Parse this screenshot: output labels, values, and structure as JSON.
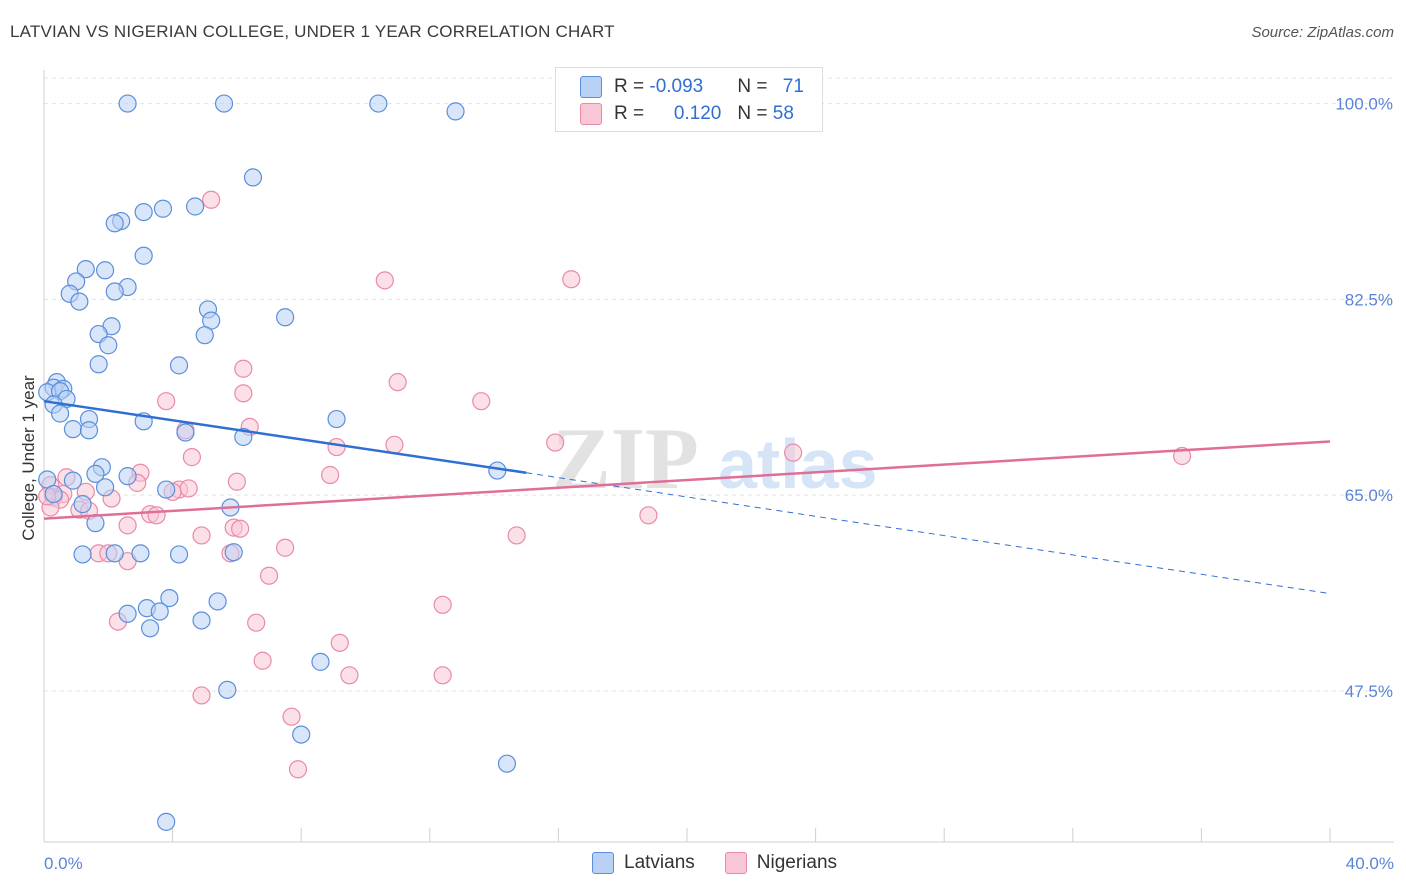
{
  "title": "LATVIAN VS NIGERIAN COLLEGE, UNDER 1 YEAR CORRELATION CHART",
  "source": "Source: ZipAtlas.com",
  "watermark": "ZIPatlas",
  "legend": {
    "rows": [
      {
        "r_label": "R = ",
        "r_value": "-0.093",
        "n_label": "N = ",
        "n_value": "71"
      },
      {
        "r_label": "R = ",
        "r_value": "0.120",
        "n_label": "N = ",
        "n_value": "58"
      }
    ]
  },
  "colors": {
    "latvians_fill": "#b9d1f4",
    "latvians_stroke": "#5b8fdc",
    "latvians_line": "#2f6fd1",
    "nigerians_fill": "#f9c6d6",
    "nigerians_stroke": "#e98aa8",
    "nigerians_line": "#e06e96",
    "axis_label": "#5b84d6",
    "grid": "#e3e3e3"
  },
  "chart_data": {
    "type": "scatter",
    "title": "LATVIAN VS NIGERIAN COLLEGE, UNDER 1 YEAR CORRELATION CHART",
    "xlabel": "",
    "ylabel": "College, Under 1 year",
    "xlim": [
      0,
      40
    ],
    "ylim": [
      34,
      103
    ],
    "x_tick_labels": [
      "0.0%",
      "40.0%"
    ],
    "y_ticks": [
      47.5,
      65.0,
      82.5,
      100.0
    ],
    "y_tick_labels": [
      "47.5%",
      "65.0%",
      "82.5%",
      "100.0%"
    ],
    "grid": true,
    "legend_position": "bottom",
    "series": [
      {
        "name": "Latvians",
        "trend": {
          "x0": 0,
          "y0": 73.4,
          "x1": 15,
          "y1": 67.0,
          "dashed_to_x": 40,
          "dashed_to_y": 56.2
        },
        "points": [
          [
            2.6,
            100.0
          ],
          [
            5.6,
            100.0
          ],
          [
            10.4,
            100.0
          ],
          [
            12.8,
            99.3
          ],
          [
            6.5,
            93.4
          ],
          [
            4.7,
            90.8
          ],
          [
            3.7,
            90.6
          ],
          [
            3.1,
            90.3
          ],
          [
            2.4,
            89.5
          ],
          [
            2.2,
            89.3
          ],
          [
            3.1,
            86.4
          ],
          [
            1.3,
            85.2
          ],
          [
            1.9,
            85.1
          ],
          [
            1.0,
            84.1
          ],
          [
            2.6,
            83.6
          ],
          [
            2.2,
            83.2
          ],
          [
            0.8,
            83.0
          ],
          [
            1.1,
            82.3
          ],
          [
            5.1,
            81.6
          ],
          [
            5.2,
            80.6
          ],
          [
            7.5,
            80.9
          ],
          [
            2.1,
            80.1
          ],
          [
            1.7,
            79.4
          ],
          [
            5.0,
            79.3
          ],
          [
            2.0,
            78.4
          ],
          [
            1.7,
            76.7
          ],
          [
            4.2,
            76.6
          ],
          [
            0.4,
            75.1
          ],
          [
            0.3,
            74.6
          ],
          [
            0.6,
            74.5
          ],
          [
            0.1,
            74.2
          ],
          [
            0.5,
            74.3
          ],
          [
            0.7,
            73.6
          ],
          [
            0.3,
            73.1
          ],
          [
            0.5,
            72.3
          ],
          [
            1.4,
            71.8
          ],
          [
            3.1,
            71.6
          ],
          [
            9.1,
            71.8
          ],
          [
            0.9,
            70.9
          ],
          [
            1.4,
            70.8
          ],
          [
            4.4,
            70.6
          ],
          [
            6.2,
            70.2
          ],
          [
            14.1,
            67.2
          ],
          [
            1.8,
            67.5
          ],
          [
            1.6,
            66.9
          ],
          [
            2.6,
            66.7
          ],
          [
            0.9,
            66.3
          ],
          [
            1.9,
            65.7
          ],
          [
            3.8,
            65.5
          ],
          [
            1.2,
            64.2
          ],
          [
            5.8,
            63.9
          ],
          [
            1.6,
            62.5
          ],
          [
            1.2,
            59.7
          ],
          [
            2.2,
            59.8
          ],
          [
            3.0,
            59.8
          ],
          [
            4.2,
            59.7
          ],
          [
            5.9,
            59.9
          ],
          [
            3.9,
            55.8
          ],
          [
            5.4,
            55.5
          ],
          [
            3.2,
            54.9
          ],
          [
            3.6,
            54.6
          ],
          [
            2.6,
            54.4
          ],
          [
            4.9,
            53.8
          ],
          [
            3.3,
            53.1
          ],
          [
            8.6,
            50.1
          ],
          [
            5.7,
            47.6
          ],
          [
            8.0,
            43.6
          ],
          [
            14.4,
            41.0
          ],
          [
            3.8,
            35.8
          ],
          [
            0.1,
            66.4
          ],
          [
            0.3,
            65.1
          ]
        ]
      },
      {
        "name": "Nigerians",
        "trend": {
          "x0": 0,
          "y0": 62.9,
          "x1": 40,
          "y1": 69.8
        },
        "points": [
          [
            5.2,
            91.4
          ],
          [
            10.6,
            84.2
          ],
          [
            16.4,
            84.3
          ],
          [
            6.2,
            76.3
          ],
          [
            11.0,
            75.1
          ],
          [
            6.2,
            74.1
          ],
          [
            3.8,
            73.4
          ],
          [
            13.6,
            73.4
          ],
          [
            6.4,
            71.1
          ],
          [
            4.4,
            70.8
          ],
          [
            15.9,
            69.7
          ],
          [
            9.1,
            69.3
          ],
          [
            10.9,
            69.5
          ],
          [
            23.3,
            68.8
          ],
          [
            35.4,
            68.5
          ],
          [
            4.6,
            68.4
          ],
          [
            3.0,
            67.0
          ],
          [
            0.7,
            66.6
          ],
          [
            8.9,
            66.8
          ],
          [
            6.0,
            66.2
          ],
          [
            2.9,
            66.1
          ],
          [
            0.2,
            65.9
          ],
          [
            4.2,
            65.5
          ],
          [
            4.5,
            65.6
          ],
          [
            4.0,
            65.3
          ],
          [
            1.3,
            65.3
          ],
          [
            0.6,
            65.1
          ],
          [
            0.3,
            64.8
          ],
          [
            0.5,
            64.6
          ],
          [
            2.1,
            64.7
          ],
          [
            0.2,
            63.9
          ],
          [
            1.1,
            63.7
          ],
          [
            1.4,
            63.6
          ],
          [
            3.3,
            63.3
          ],
          [
            3.5,
            63.2
          ],
          [
            18.8,
            63.2
          ],
          [
            2.6,
            62.3
          ],
          [
            5.9,
            62.1
          ],
          [
            6.1,
            62.0
          ],
          [
            4.9,
            61.4
          ],
          [
            14.7,
            61.4
          ],
          [
            7.5,
            60.3
          ],
          [
            1.7,
            59.8
          ],
          [
            2.0,
            59.8
          ],
          [
            5.8,
            59.8
          ],
          [
            2.6,
            59.1
          ],
          [
            7.0,
            57.8
          ],
          [
            12.4,
            55.2
          ],
          [
            2.3,
            53.7
          ],
          [
            6.6,
            53.6
          ],
          [
            9.2,
            51.8
          ],
          [
            6.8,
            50.2
          ],
          [
            9.5,
            48.9
          ],
          [
            12.4,
            48.9
          ],
          [
            4.9,
            47.1
          ],
          [
            7.7,
            45.2
          ],
          [
            7.9,
            40.5
          ],
          [
            0.1,
            64.9
          ]
        ]
      }
    ]
  },
  "bottom_legend": [
    "Latvians",
    "Nigerians"
  ]
}
